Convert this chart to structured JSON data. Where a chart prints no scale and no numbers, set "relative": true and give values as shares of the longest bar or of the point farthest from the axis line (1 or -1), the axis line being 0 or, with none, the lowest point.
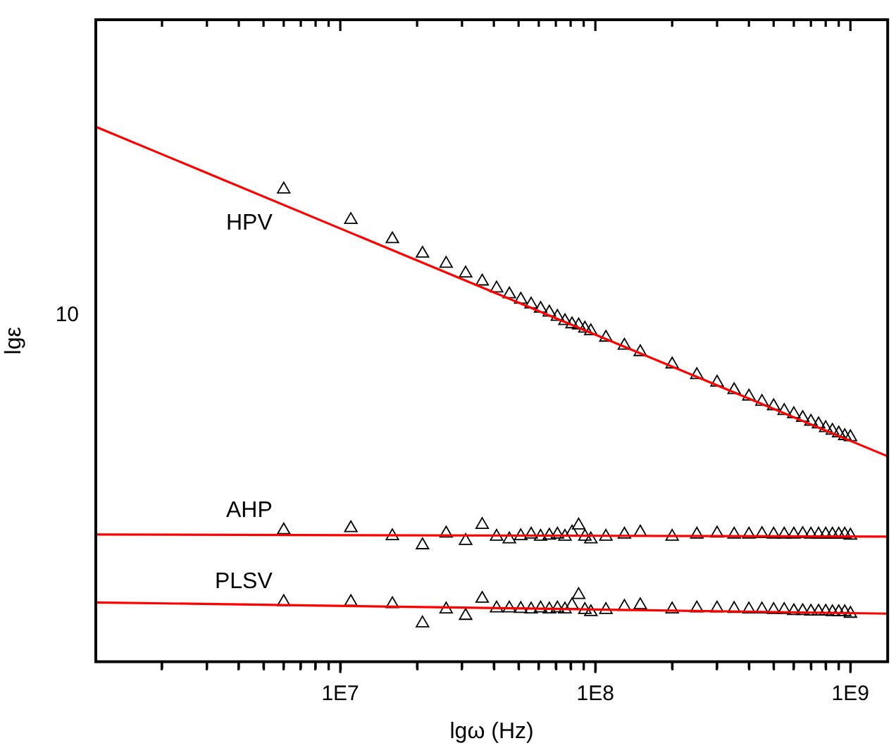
{
  "chart_data": {
    "type": "scatter",
    "xlabel": "lgω (Hz)",
    "ylabel": "lgε",
    "log": "x",
    "relative": true,
    "grid": false,
    "legend": false,
    "xlim": [
      1100000.0,
      1400000000.0
    ],
    "annotations": [
      "10"
    ],
    "xticks": [
      {
        "value": 2000000.0,
        "label": null
      },
      {
        "value": 3000000.0,
        "label": null
      },
      {
        "value": 4000000.0,
        "label": null
      },
      {
        "value": 5000000.0,
        "label": null
      },
      {
        "value": 6000000.0,
        "label": null
      },
      {
        "value": 7000000.0,
        "label": null
      },
      {
        "value": 8000000.0,
        "label": null
      },
      {
        "value": 9000000.0,
        "label": null
      },
      {
        "value": 10000000.0,
        "label": "1E7"
      },
      {
        "value": 20000000.0,
        "label": null
      },
      {
        "value": 30000000.0,
        "label": null
      },
      {
        "value": 40000000.0,
        "label": null
      },
      {
        "value": 50000000.0,
        "label": null
      },
      {
        "value": 60000000.0,
        "label": null
      },
      {
        "value": 70000000.0,
        "label": null
      },
      {
        "value": 80000000.0,
        "label": null
      },
      {
        "value": 90000000.0,
        "label": null
      },
      {
        "value": 100000000.0,
        "label": "1E8"
      },
      {
        "value": 200000000.0,
        "label": null
      },
      {
        "value": 300000000.0,
        "label": null
      },
      {
        "value": 400000000.0,
        "label": null
      },
      {
        "value": 500000000.0,
        "label": null
      },
      {
        "value": 600000000.0,
        "label": null
      },
      {
        "value": 700000000.0,
        "label": null
      },
      {
        "value": 800000000.0,
        "label": null
      },
      {
        "value": 900000000.0,
        "label": null
      },
      {
        "value": 1000000000.0,
        "label": "1E9"
      }
    ],
    "series": [
      {
        "name": "HPV",
        "color": "#000000",
        "marker": "triangle",
        "x": [
          6000000.0,
          11000000.0,
          16000000.0,
          21000000.0,
          26000000.0,
          31000000.0,
          36000000.0,
          41000000.0,
          46000000.0,
          51000000.0,
          56000000.0,
          61000000.0,
          66000000.0,
          71000000.0,
          76000000.0,
          81000000.0,
          86000000.0,
          91000000.0,
          96000000.0,
          110000000.0,
          130000000.0,
          150000000.0,
          200000000.0,
          250000000.0,
          300000000.0,
          350000000.0,
          400000000.0,
          450000000.0,
          500000000.0,
          550000000.0,
          600000000.0,
          650000000.0,
          700000000.0,
          750000000.0,
          800000000.0,
          850000000.0,
          900000000.0,
          950000000.0,
          1000000000.0
        ],
        "values": [
          0.883,
          0.826,
          0.79,
          0.763,
          0.744,
          0.726,
          0.711,
          0.698,
          0.687,
          0.677,
          0.668,
          0.66,
          0.653,
          0.645,
          0.637,
          0.631,
          0.629,
          0.623,
          0.618,
          0.606,
          0.591,
          0.579,
          0.556,
          0.536,
          0.522,
          0.508,
          0.496,
          0.486,
          0.478,
          0.469,
          0.463,
          0.456,
          0.449,
          0.444,
          0.437,
          0.432,
          0.427,
          0.422,
          0.42
        ]
      },
      {
        "name": "AHP",
        "color": "#000000",
        "marker": "triangle",
        "x": [
          6000000.0,
          11000000.0,
          16000000.0,
          21000000.0,
          26000000.0,
          31000000.0,
          36000000.0,
          41000000.0,
          46000000.0,
          51000000.0,
          56000000.0,
          61000000.0,
          66000000.0,
          71000000.0,
          76000000.0,
          81000000.0,
          86000000.0,
          91000000.0,
          96000000.0,
          110000000.0,
          130000000.0,
          150000000.0,
          200000000.0,
          250000000.0,
          300000000.0,
          350000000.0,
          400000000.0,
          450000000.0,
          500000000.0,
          550000000.0,
          600000000.0,
          650000000.0,
          700000000.0,
          750000000.0,
          800000000.0,
          850000000.0,
          900000000.0,
          950000000.0,
          1000000000.0
        ],
        "values": [
          0.246,
          0.25,
          0.235,
          0.218,
          0.24,
          0.226,
          0.256,
          0.234,
          0.229,
          0.235,
          0.238,
          0.234,
          0.236,
          0.238,
          0.234,
          0.242,
          0.255,
          0.234,
          0.229,
          0.234,
          0.238,
          0.242,
          0.234,
          0.238,
          0.24,
          0.238,
          0.238,
          0.239,
          0.238,
          0.238,
          0.238,
          0.239,
          0.238,
          0.238,
          0.238,
          0.238,
          0.238,
          0.238,
          0.236
        ]
      },
      {
        "name": "PLSV",
        "color": "#000000",
        "marker": "triangle",
        "x": [
          6000000.0,
          11000000.0,
          16000000.0,
          21000000.0,
          26000000.0,
          31000000.0,
          36000000.0,
          41000000.0,
          46000000.0,
          51000000.0,
          56000000.0,
          61000000.0,
          66000000.0,
          71000000.0,
          76000000.0,
          81000000.0,
          86000000.0,
          91000000.0,
          96000000.0,
          110000000.0,
          130000000.0,
          150000000.0,
          200000000.0,
          250000000.0,
          300000000.0,
          350000000.0,
          400000000.0,
          450000000.0,
          500000000.0,
          550000000.0,
          600000000.0,
          650000000.0,
          700000000.0,
          750000000.0,
          800000000.0,
          850000000.0,
          900000000.0,
          950000000.0,
          1000000000.0
        ],
        "values": [
          0.112,
          0.112,
          0.108,
          0.072,
          0.098,
          0.086,
          0.118,
          0.1,
          0.1,
          0.099,
          0.098,
          0.1,
          0.098,
          0.1,
          0.098,
          0.106,
          0.125,
          0.097,
          0.093,
          0.097,
          0.103,
          0.106,
          0.098,
          0.1,
          0.1,
          0.099,
          0.098,
          0.098,
          0.097,
          0.097,
          0.095,
          0.095,
          0.094,
          0.094,
          0.094,
          0.093,
          0.093,
          0.093,
          0.09
        ]
      },
      {
        "type": "line",
        "color": "#ff0000",
        "marker": "none",
        "x": [
          1100000.0,
          1400000000.0
        ],
        "values": [
          1,
          0.384
        ]
      },
      {
        "type": "line",
        "color": "#ff0000",
        "marker": "none",
        "x": [
          1100000.0,
          1400000000.0
        ],
        "values": [
          0.238,
          0.234
        ]
      },
      {
        "type": "line",
        "color": "#ff0000",
        "marker": "none",
        "x": [
          1100000.0,
          1400000000.0
        ],
        "values": [
          0.111,
          0.09
        ]
      }
    ]
  }
}
